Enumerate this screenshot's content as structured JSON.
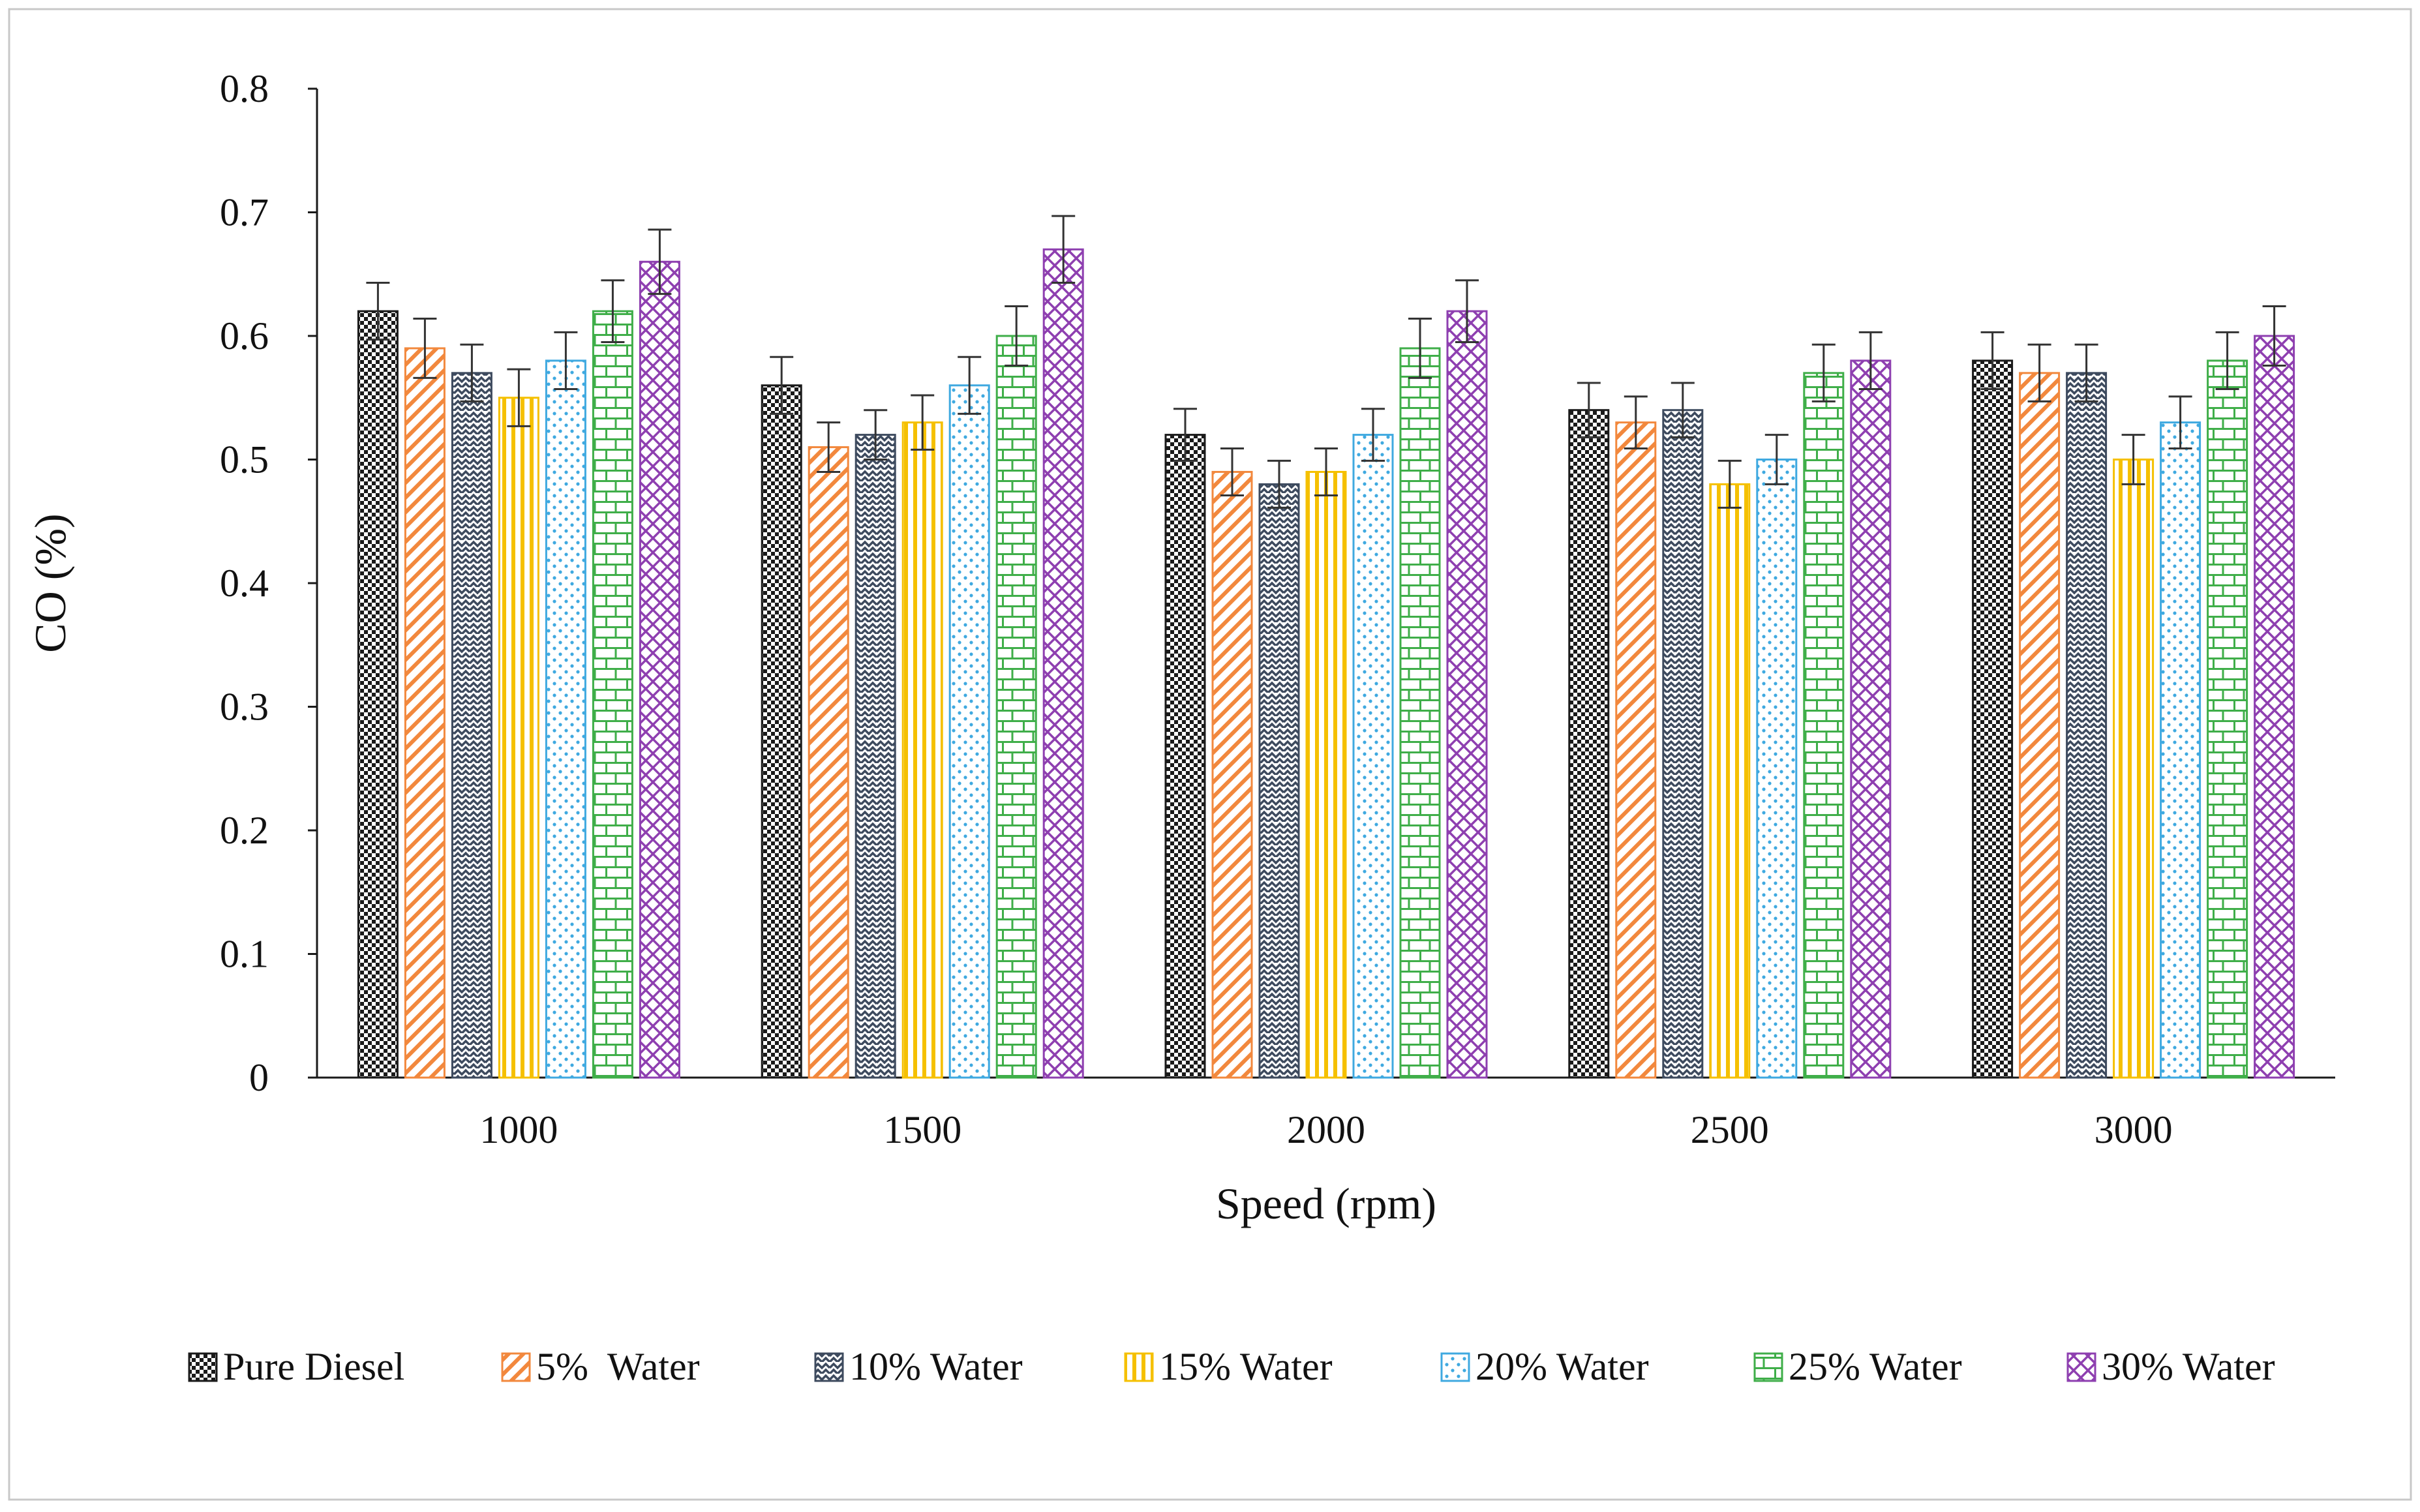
{
  "chart_data": {
    "type": "bar",
    "title": "",
    "xlabel": "Speed (rpm)",
    "ylabel": "CO (%)",
    "ylim": [
      0,
      0.8
    ],
    "yticks": [
      "0",
      "0.1",
      "0.2",
      "0.3",
      "0.4",
      "0.5",
      "0.6",
      "0.7",
      "0.8"
    ],
    "categories": [
      "1000",
      "1500",
      "2000",
      "2500",
      "3000"
    ],
    "legend_position": "bottom",
    "series": [
      {
        "name": "Pure Diesel",
        "color": "#1a1a1a",
        "pattern": "checker",
        "values": [
          0.62,
          0.56,
          0.52,
          0.54,
          0.58
        ],
        "error": [
          0.023,
          0.023,
          0.021,
          0.022,
          0.023
        ]
      },
      {
        "name": "5%  Water",
        "color": "#f2883d",
        "pattern": "diagonal",
        "values": [
          0.59,
          0.51,
          0.49,
          0.53,
          0.57
        ],
        "error": [
          0.024,
          0.02,
          0.019,
          0.021,
          0.023
        ]
      },
      {
        "name": "10% Water",
        "color": "#3d4a5e",
        "pattern": "wave",
        "values": [
          0.57,
          0.52,
          0.48,
          0.54,
          0.57
        ],
        "error": [
          0.023,
          0.02,
          0.019,
          0.022,
          0.023
        ]
      },
      {
        "name": "15% Water",
        "color": "#f5c000",
        "pattern": "vertical",
        "values": [
          0.55,
          0.53,
          0.49,
          0.48,
          0.5
        ],
        "error": [
          0.023,
          0.022,
          0.019,
          0.019,
          0.02
        ]
      },
      {
        "name": "20% Water",
        "color": "#3fa9e0",
        "pattern": "dots",
        "values": [
          0.58,
          0.56,
          0.52,
          0.5,
          0.53
        ],
        "error": [
          0.023,
          0.023,
          0.021,
          0.02,
          0.021
        ]
      },
      {
        "name": "25% Water",
        "color": "#3fae49",
        "pattern": "brick",
        "values": [
          0.62,
          0.6,
          0.59,
          0.57,
          0.58
        ],
        "error": [
          0.025,
          0.024,
          0.024,
          0.023,
          0.023
        ]
      },
      {
        "name": "30% Water",
        "color": "#8e3fb0",
        "pattern": "crosshatch",
        "values": [
          0.66,
          0.67,
          0.62,
          0.58,
          0.6
        ],
        "error": [
          0.026,
          0.027,
          0.025,
          0.023,
          0.024
        ]
      }
    ]
  }
}
